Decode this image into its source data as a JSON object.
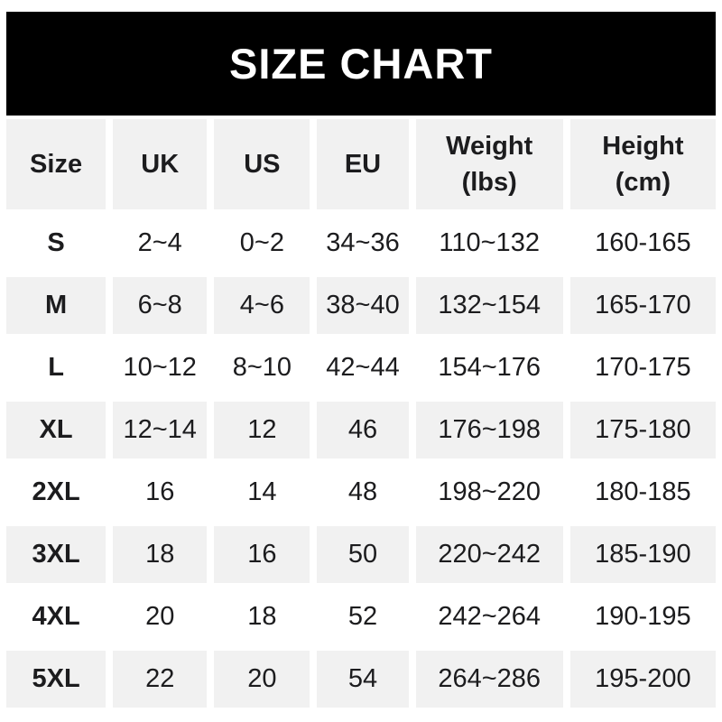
{
  "banner": {
    "title": "SIZE CHART"
  },
  "colors": {
    "page_bg": "#ffffff",
    "banner_bg": "#000000",
    "banner_text": "#ffffff",
    "alt_row_bg": "#f1f1f1",
    "text": "#1c1c1e"
  },
  "table": {
    "columns": [
      {
        "id": "size",
        "label": "Size",
        "sub": ""
      },
      {
        "id": "uk",
        "label": "UK",
        "sub": ""
      },
      {
        "id": "us",
        "label": "US",
        "sub": ""
      },
      {
        "id": "eu",
        "label": "EU",
        "sub": ""
      },
      {
        "id": "weight",
        "label": "Weight",
        "sub": "(lbs)"
      },
      {
        "id": "height",
        "label": "Height",
        "sub": "(cm)"
      }
    ],
    "rows": [
      {
        "cells": [
          "S",
          "2~4",
          "0~2",
          "34~36",
          "110~132",
          "160-165"
        ]
      },
      {
        "cells": [
          "M",
          "6~8",
          "4~6",
          "38~40",
          "132~154",
          "165-170"
        ]
      },
      {
        "cells": [
          "L",
          "10~12",
          "8~10",
          "42~44",
          "154~176",
          "170-175"
        ]
      },
      {
        "cells": [
          "XL",
          "12~14",
          "12",
          "46",
          "176~198",
          "175-180"
        ]
      },
      {
        "cells": [
          "2XL",
          "16",
          "14",
          "48",
          "198~220",
          "180-185"
        ]
      },
      {
        "cells": [
          "3XL",
          "18",
          "16",
          "50",
          "220~242",
          "185-190"
        ]
      },
      {
        "cells": [
          "4XL",
          "20",
          "18",
          "52",
          "242~264",
          "190-195"
        ]
      },
      {
        "cells": [
          "5XL",
          "22",
          "20",
          "54",
          "264~286",
          "195-200"
        ]
      }
    ]
  }
}
